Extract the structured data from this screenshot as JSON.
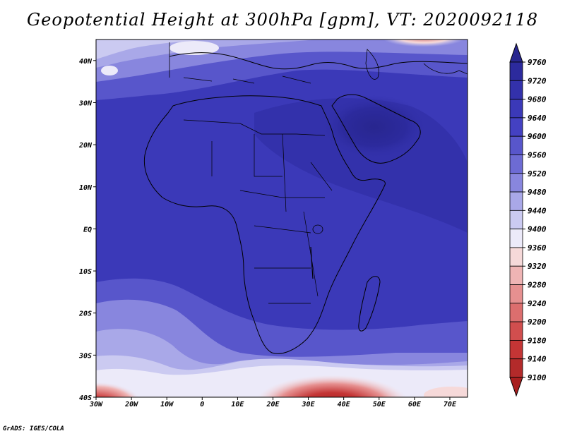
{
  "title": "Geopotential Height at 300hPa [gpm], VT: 2020092118",
  "credit": "GrADS: IGES/COLA",
  "map": {
    "variable": "Geopotential Height",
    "level": "300hPa",
    "units": "gpm",
    "valid_time": "2020092118",
    "lon_range": [
      -30,
      75
    ],
    "lat_range": [
      -40,
      45
    ],
    "lat_ticks": [
      {
        "value": 40,
        "label": "40N"
      },
      {
        "value": 30,
        "label": "30N"
      },
      {
        "value": 20,
        "label": "20N"
      },
      {
        "value": 10,
        "label": "10N"
      },
      {
        "value": 0,
        "label": "EQ"
      },
      {
        "value": -10,
        "label": "10S"
      },
      {
        "value": -20,
        "label": "20S"
      },
      {
        "value": -30,
        "label": "30S"
      },
      {
        "value": -40,
        "label": "40S"
      }
    ],
    "lon_ticks": [
      {
        "value": -30,
        "label": "30W"
      },
      {
        "value": -20,
        "label": "20W"
      },
      {
        "value": -10,
        "label": "10W"
      },
      {
        "value": 0,
        "label": "0"
      },
      {
        "value": 10,
        "label": "10E"
      },
      {
        "value": 20,
        "label": "20E"
      },
      {
        "value": 30,
        "label": "30E"
      },
      {
        "value": 40,
        "label": "40E"
      },
      {
        "value": 50,
        "label": "50E"
      },
      {
        "value": 60,
        "label": "60E"
      },
      {
        "value": 70,
        "label": "70E"
      }
    ]
  },
  "colorbar": {
    "labels": [
      "9760",
      "9720",
      "9680",
      "9640",
      "9600",
      "9560",
      "9520",
      "9480",
      "9440",
      "9400",
      "9360",
      "9320",
      "9280",
      "9240",
      "9200",
      "9180",
      "9140",
      "9100"
    ],
    "colors": [
      "#28268f",
      "#2c2a9d",
      "#3331ab",
      "#3b39b8",
      "#4441c2",
      "#5856cb",
      "#6d6bd4",
      "#8886de",
      "#a9a8e8",
      "#cbcaf1",
      "#eceaf9",
      "#f6d9d9",
      "#efb4b4",
      "#e69090",
      "#dc6e6e",
      "#d14e4e",
      "#c43535",
      "#b32a2a",
      "#a81f1f"
    ]
  },
  "chart_data": {
    "type": "heatmap",
    "title": "Geopotential Height at 300hPa [gpm], VT: 2020092118",
    "x_range": [
      -30,
      75
    ],
    "y_range": [
      -40,
      45
    ],
    "color_levels": [
      9100,
      9140,
      9180,
      9200,
      9240,
      9280,
      9320,
      9360,
      9400,
      9440,
      9480,
      9520,
      9560,
      9600,
      9640,
      9680,
      9720,
      9760
    ],
    "max_region": "Arabian Peninsula (~9720-9760 gpm)",
    "min_regions": [
      "south of 35S near 40E (~9100 gpm)",
      "southwest corner near 30W 40S (~9100 gpm)"
    ]
  }
}
